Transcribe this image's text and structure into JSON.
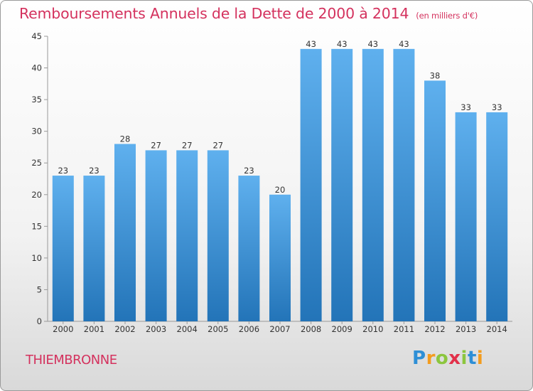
{
  "header": {
    "title": "Remboursements Annuels de la Dette de 2000 à 2014",
    "unit": "(en milliers d'€)"
  },
  "commune": "THIEMBRONNE",
  "logo": {
    "letters": [
      "P",
      "r",
      "o",
      "x",
      "i",
      "t",
      "i"
    ],
    "colors": [
      "#2e8fd6",
      "#f39c1e",
      "#8cc63e",
      "#e2314a",
      "#8cc63e",
      "#2e8fd6",
      "#f39c1e"
    ]
  },
  "chart_data": {
    "type": "bar",
    "title": "Remboursements Annuels de la Dette de 2000 à 2014",
    "xlabel": "",
    "ylabel": "",
    "categories": [
      "2000",
      "2001",
      "2002",
      "2003",
      "2004",
      "2005",
      "2006",
      "2007",
      "2008",
      "2009",
      "2010",
      "2011",
      "2012",
      "2013",
      "2014"
    ],
    "values": [
      23,
      23,
      28,
      27,
      27,
      27,
      23,
      20,
      43,
      43,
      43,
      43,
      38,
      33,
      33
    ],
    "ylim": [
      0,
      45
    ],
    "yticks": [
      0,
      5,
      10,
      15,
      20,
      25,
      30,
      35,
      40,
      45
    ],
    "grid": false,
    "colors": {
      "bar_top": "#5fb0ee",
      "bar_bottom": "#2374b8",
      "label": "#333333",
      "axis": "#999999"
    }
  }
}
